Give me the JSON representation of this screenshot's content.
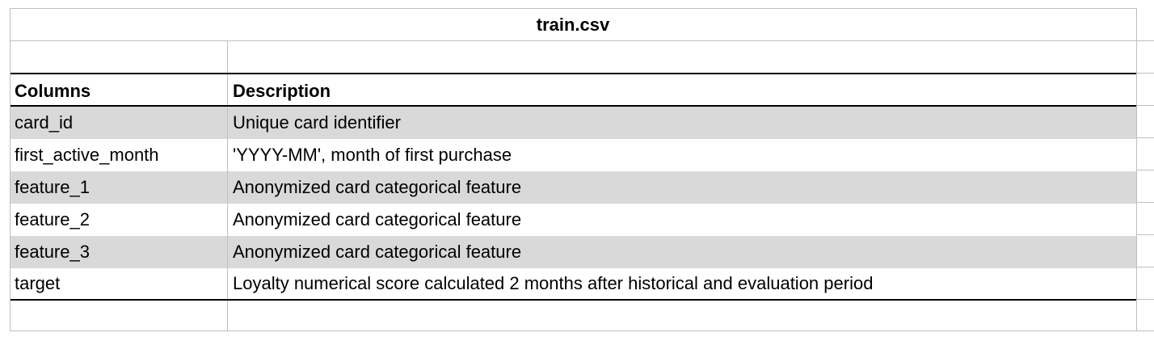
{
  "table": {
    "title": "train.csv",
    "headers": {
      "columns": "Columns",
      "description": "Description"
    },
    "rows": [
      {
        "column": "card_id",
        "description": "Unique card identifier",
        "shaded": true
      },
      {
        "column": "first_active_month",
        "description": "'YYYY-MM', month of first purchase",
        "shaded": false
      },
      {
        "column": "feature_1",
        "description": "Anonymized card categorical feature",
        "shaded": true
      },
      {
        "column": "feature_2",
        "description": "Anonymized card categorical feature",
        "shaded": false
      },
      {
        "column": "feature_3",
        "description": "Anonymized card categorical feature",
        "shaded": true
      },
      {
        "column": "target",
        "description": "Loyalty numerical score calculated 2 months after historical and evaluation period",
        "shaded": false
      }
    ]
  },
  "colors": {
    "shade": "#d9d9d9",
    "gridline": "#bfbfbf",
    "rule": "#000000"
  }
}
